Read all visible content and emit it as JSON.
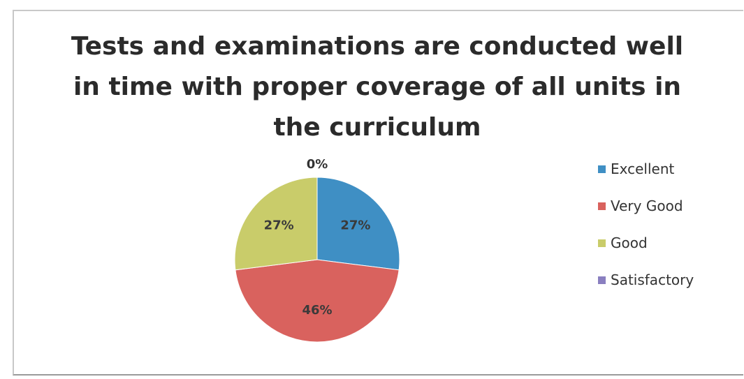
{
  "chart_data": {
    "type": "pie",
    "title_lines": [
      "Tests and examinations are conducted well",
      "in time with proper coverage of all units in",
      "the curriculum"
    ],
    "slices": [
      {
        "name": "Excellent",
        "value": 27,
        "label": "27%",
        "color": "#3f8fc4"
      },
      {
        "name": "Very Good",
        "value": 46,
        "label": "46%",
        "color": "#d9625e"
      },
      {
        "name": "Good",
        "value": 27,
        "label": "27%",
        "color": "#c9cc6a"
      },
      {
        "name": "Satisfactory",
        "value": 0,
        "label": "0%",
        "color": "#8a7fc0"
      }
    ],
    "legend_position": "right"
  }
}
